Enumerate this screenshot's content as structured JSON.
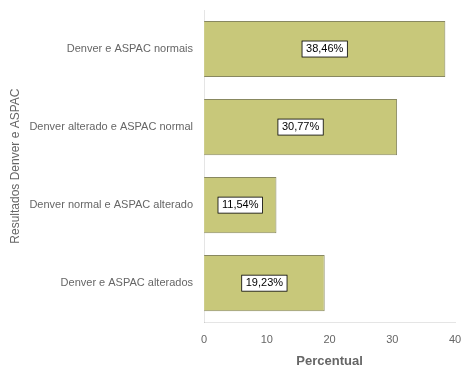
{
  "chart_data": {
    "type": "bar",
    "orientation": "horizontal",
    "categories": [
      "Denver e ASPAC normais",
      "Denver alterado e ASPAC normal",
      "Denver normal e ASPAC alterado",
      "Denver e ASPAC alterados"
    ],
    "values": [
      38.46,
      30.77,
      11.54,
      19.23
    ],
    "value_labels": [
      "38,46%",
      "30,77%",
      "11,54%",
      "19,23%"
    ],
    "data_labels": true,
    "color": "#c8c87a",
    "xlabel": "Percentual",
    "ylabel": "Resultados Denver e ASPAC",
    "xlim": [
      0,
      40
    ],
    "xticks": [
      0,
      10,
      20,
      30,
      40
    ],
    "grid": false
  }
}
